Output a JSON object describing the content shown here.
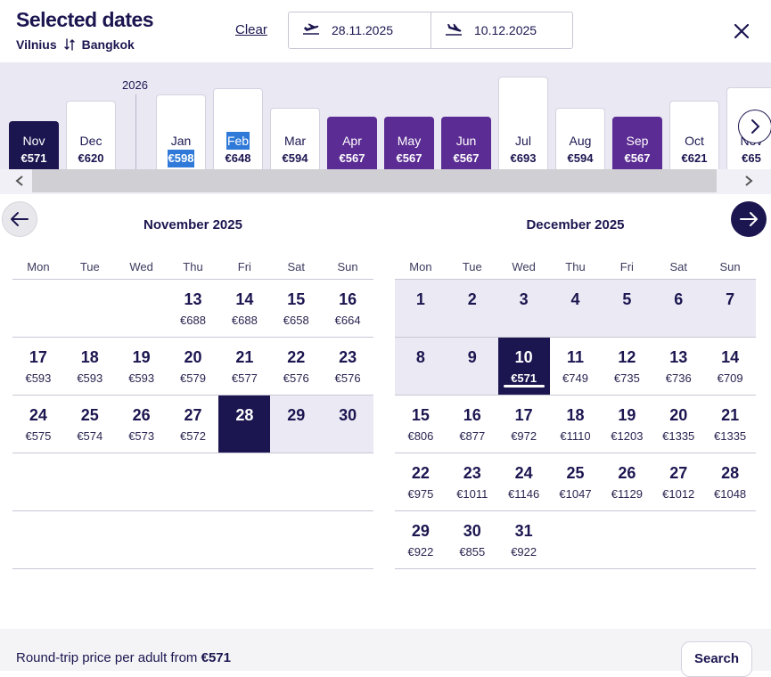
{
  "header": {
    "title": "Selected dates",
    "origin": "Vilnius",
    "destination": "Bangkok",
    "clear_label": "Clear",
    "depart_date": "28.11.2025",
    "return_date": "10.12.2025"
  },
  "month_strip": {
    "year_label": "2026",
    "months": [
      {
        "name": "Nov",
        "price": "€571",
        "level": 0.22,
        "state": "selected"
      },
      {
        "name": "Dec",
        "price": "€620",
        "level": 0.58,
        "state": "normal"
      },
      {
        "name": "Jan",
        "price": "€598",
        "level": 0.68,
        "state": "normal",
        "highlight": true
      },
      {
        "name": "Feb",
        "price": "€648",
        "level": 0.8,
        "state": "normal",
        "highlight_name": true
      },
      {
        "name": "Mar",
        "price": "€594",
        "level": 0.45,
        "state": "normal"
      },
      {
        "name": "Apr",
        "price": "€567",
        "level": 0.3,
        "state": "cheap"
      },
      {
        "name": "May",
        "price": "€567",
        "level": 0.3,
        "state": "cheap"
      },
      {
        "name": "Jun",
        "price": "€567",
        "level": 0.3,
        "state": "cheap"
      },
      {
        "name": "Jul",
        "price": "€693",
        "level": 1.0,
        "state": "normal"
      },
      {
        "name": "Aug",
        "price": "€594",
        "level": 0.45,
        "state": "normal"
      },
      {
        "name": "Sep",
        "price": "€567",
        "level": 0.3,
        "state": "cheap"
      },
      {
        "name": "Oct",
        "price": "€621",
        "level": 0.58,
        "state": "normal"
      },
      {
        "name": "Nov",
        "price": "€65",
        "level": 0.82,
        "state": "normal"
      }
    ]
  },
  "calendars": [
    {
      "title": "November 2025",
      "weekdays": [
        "Mon",
        "Tue",
        "Wed",
        "Thu",
        "Fri",
        "Sat",
        "Sun"
      ],
      "weeks": [
        [
          null,
          null,
          null,
          {
            "d": "13",
            "p": "€688"
          },
          {
            "d": "14",
            "p": "€688"
          },
          {
            "d": "15",
            "p": "€658"
          },
          {
            "d": "16",
            "p": "€664"
          }
        ],
        [
          {
            "d": "17",
            "p": "€593"
          },
          {
            "d": "18",
            "p": "€593"
          },
          {
            "d": "19",
            "p": "€593"
          },
          {
            "d": "20",
            "p": "€579"
          },
          {
            "d": "21",
            "p": "€577"
          },
          {
            "d": "22",
            "p": "€576"
          },
          {
            "d": "23",
            "p": "€576"
          }
        ],
        [
          {
            "d": "24",
            "p": "€575"
          },
          {
            "d": "25",
            "p": "€574"
          },
          {
            "d": "26",
            "p": "€573"
          },
          {
            "d": "27",
            "p": "€572"
          },
          {
            "d": "28",
            "p": "",
            "s": "sel"
          },
          {
            "d": "29",
            "p": "",
            "s": "inrange"
          },
          {
            "d": "30",
            "p": "",
            "s": "inrange"
          }
        ],
        [
          null,
          null,
          null,
          null,
          null,
          null,
          null
        ],
        [
          null,
          null,
          null,
          null,
          null,
          null,
          null
        ]
      ]
    },
    {
      "title": "December 2025",
      "weekdays": [
        "Mon",
        "Tue",
        "Wed",
        "Thu",
        "Fri",
        "Sat",
        "Sun"
      ],
      "weeks": [
        [
          {
            "d": "1",
            "p": "",
            "s": "inrange"
          },
          {
            "d": "2",
            "p": "",
            "s": "inrange"
          },
          {
            "d": "3",
            "p": "",
            "s": "inrange"
          },
          {
            "d": "4",
            "p": "",
            "s": "inrange"
          },
          {
            "d": "5",
            "p": "",
            "s": "inrange"
          },
          {
            "d": "6",
            "p": "",
            "s": "inrange"
          },
          {
            "d": "7",
            "p": "",
            "s": "inrange"
          }
        ],
        [
          {
            "d": "8",
            "p": "",
            "s": "inrange"
          },
          {
            "d": "9",
            "p": "",
            "s": "inrange"
          },
          {
            "d": "10",
            "p": "€571",
            "s": "sel ret"
          },
          {
            "d": "11",
            "p": "€749"
          },
          {
            "d": "12",
            "p": "€735"
          },
          {
            "d": "13",
            "p": "€736"
          },
          {
            "d": "14",
            "p": "€709"
          }
        ],
        [
          {
            "d": "15",
            "p": "€806"
          },
          {
            "d": "16",
            "p": "€877"
          },
          {
            "d": "17",
            "p": "€972"
          },
          {
            "d": "18",
            "p": "€1110"
          },
          {
            "d": "19",
            "p": "€1203"
          },
          {
            "d": "20",
            "p": "€1335"
          },
          {
            "d": "21",
            "p": "€1335"
          }
        ],
        [
          {
            "d": "22",
            "p": "€975"
          },
          {
            "d": "23",
            "p": "€1011"
          },
          {
            "d": "24",
            "p": "€1146"
          },
          {
            "d": "25",
            "p": "€1047"
          },
          {
            "d": "26",
            "p": "€1129"
          },
          {
            "d": "27",
            "p": "€1012"
          },
          {
            "d": "28",
            "p": "€1048"
          }
        ],
        [
          {
            "d": "29",
            "p": "€922"
          },
          {
            "d": "30",
            "p": "€855"
          },
          {
            "d": "31",
            "p": "€922"
          },
          null,
          null,
          null,
          null
        ]
      ]
    }
  ],
  "footer": {
    "price_text": "Round-trip price per adult from",
    "price_value": "€571",
    "search_label": "Search"
  },
  "colors": {
    "navy": "#1b1650",
    "purple": "#5b2c93",
    "highlight_blue": "#2f7ad8",
    "range_bg": "#ebeaf4"
  }
}
